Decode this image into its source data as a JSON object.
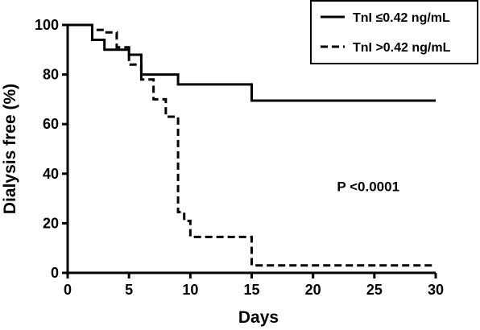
{
  "chart_data": {
    "type": "line",
    "xlabel": "Days",
    "ylabel": "Dialysis free (%)",
    "xlim": [
      0,
      30
    ],
    "ylim": [
      0,
      100
    ],
    "xticks": [
      0,
      5,
      10,
      15,
      20,
      25,
      30
    ],
    "yticks": [
      0,
      20,
      40,
      60,
      80,
      100
    ],
    "grid": false,
    "legend_position": "top-right",
    "step": true,
    "series": [
      {
        "name": "TnI ≤0.42 ng/mL",
        "style": "solid",
        "color": "#000000",
        "x": [
          0,
          2,
          3,
          5,
          6,
          9,
          15,
          30
        ],
        "y": [
          100,
          94,
          90,
          88,
          80,
          76,
          69.5,
          69.5
        ]
      },
      {
        "name": "TnI >0.42 ng/mL",
        "style": "dashed",
        "color": "#000000",
        "x": [
          0,
          2,
          3,
          4,
          5,
          6,
          7,
          8,
          9,
          9.5,
          10,
          15,
          30
        ],
        "y": [
          100,
          98,
          97,
          91,
          84,
          78,
          70,
          63,
          24.5,
          21,
          14.5,
          3,
          3
        ]
      }
    ],
    "annotations": [
      {
        "text": "P <0.0001",
        "x": 24.5,
        "y": 33
      }
    ]
  }
}
